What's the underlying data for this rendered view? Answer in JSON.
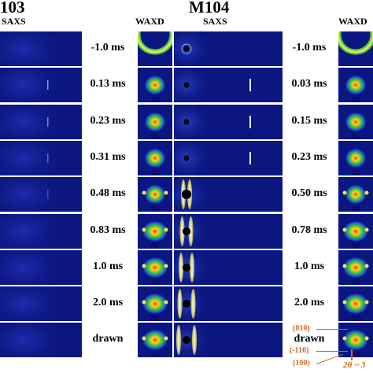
{
  "panels": {
    "left": {
      "title": "103",
      "saxs_label": "SAXS"
    },
    "right": {
      "title": "M104",
      "waxd_label": "WAXD",
      "saxs_label": "SAXS",
      "waxd_label_right": "WAXD"
    }
  },
  "rows_left": [
    "-1.0 ms",
    "0.13 ms",
    "0.23 ms",
    "0.31 ms",
    "0.48 ms",
    "0.83 ms",
    "1.0 ms",
    "2.0 ms",
    "drawn"
  ],
  "rows_right": [
    "-1.0 ms",
    "0.03 ms",
    "0.15 ms",
    "0.23 ms",
    "0.50 ms",
    "0.78 ms",
    "1.0 ms",
    "2.0 ms",
    "drawn"
  ],
  "annotations": {
    "peak_010": "(010)",
    "peak_m110": "(-110)",
    "peak_100": "(100)",
    "two_theta": "2θ ~ 3"
  },
  "colors": {
    "detector_bg": "#0a0f6e",
    "annotation": "#d2691e"
  }
}
